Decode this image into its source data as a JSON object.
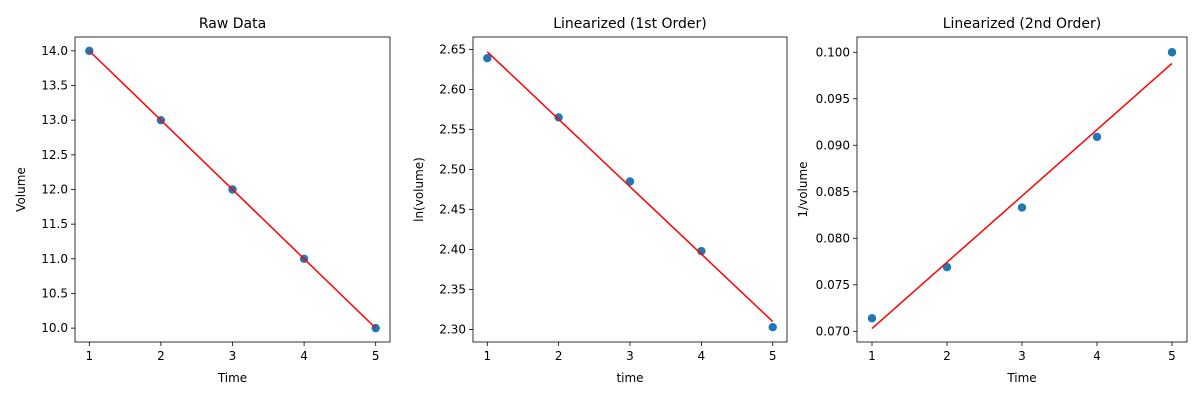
{
  "chart_data": [
    {
      "type": "scatter",
      "title": "Raw Data",
      "xlabel": "Time",
      "ylabel": "Volume",
      "xlim": [
        0.8,
        5.2
      ],
      "ylim": [
        9.8,
        14.2
      ],
      "xticks": [
        1,
        2,
        3,
        4,
        5
      ],
      "xtick_labels": [
        "1",
        "2",
        "3",
        "4",
        "5"
      ],
      "yticks": [
        10.0,
        10.5,
        11.0,
        11.5,
        12.0,
        12.5,
        13.0,
        13.5,
        14.0
      ],
      "ytick_labels": [
        "10.0",
        "10.5",
        "11.0",
        "11.5",
        "12.0",
        "12.5",
        "13.0",
        "13.5",
        "14.0"
      ],
      "series": [
        {
          "kind": "points",
          "color": "#1f77b4",
          "x": [
            1,
            2,
            3,
            4,
            5
          ],
          "y": [
            14.0,
            13.0,
            12.0,
            11.0,
            10.0
          ]
        },
        {
          "kind": "line",
          "color": "#ff0000",
          "x": [
            1,
            5
          ],
          "y": [
            14.0,
            10.0
          ]
        }
      ]
    },
    {
      "type": "scatter",
      "title": "Linearized (1st Order)",
      "xlabel": "time",
      "ylabel": "ln(volume)",
      "xlim": [
        0.8,
        5.2
      ],
      "ylim": [
        2.2845,
        2.6655
      ],
      "xticks": [
        1,
        2,
        3,
        4,
        5
      ],
      "xtick_labels": [
        "1",
        "2",
        "3",
        "4",
        "5"
      ],
      "yticks": [
        2.3,
        2.35,
        2.4,
        2.45,
        2.5,
        2.55,
        2.6,
        2.65
      ],
      "ytick_labels": [
        "2.30",
        "2.35",
        "2.40",
        "2.45",
        "2.50",
        "2.55",
        "2.60",
        "2.65"
      ],
      "series": [
        {
          "kind": "points",
          "color": "#1f77b4",
          "x": [
            1,
            2,
            3,
            4,
            5
          ],
          "y": [
            2.639,
            2.565,
            2.485,
            2.398,
            2.303
          ]
        },
        {
          "kind": "line",
          "color": "#ff0000",
          "x": [
            1,
            5
          ],
          "y": [
            2.647,
            2.31
          ]
        }
      ]
    },
    {
      "type": "scatter",
      "title": "Linearized (2nd Order)",
      "xlabel": "Time",
      "ylabel": "1/volume",
      "xlim": [
        0.8,
        5.2
      ],
      "ylim": [
        0.06885,
        0.10164
      ],
      "xticks": [
        1,
        2,
        3,
        4,
        5
      ],
      "xtick_labels": [
        "1",
        "2",
        "3",
        "4",
        "5"
      ],
      "yticks": [
        0.07,
        0.075,
        0.08,
        0.085,
        0.09,
        0.095,
        0.1
      ],
      "ytick_labels": [
        "0.070",
        "0.075",
        "0.080",
        "0.085",
        "0.090",
        "0.095",
        "0.100"
      ],
      "series": [
        {
          "kind": "points",
          "color": "#1f77b4",
          "x": [
            1,
            2,
            3,
            4,
            5
          ],
          "y": [
            0.0714,
            0.0769,
            0.0833,
            0.0909,
            0.1
          ]
        },
        {
          "kind": "line",
          "color": "#ff0000",
          "x": [
            1,
            5
          ],
          "y": [
            0.0703,
            0.0988
          ]
        }
      ]
    }
  ]
}
